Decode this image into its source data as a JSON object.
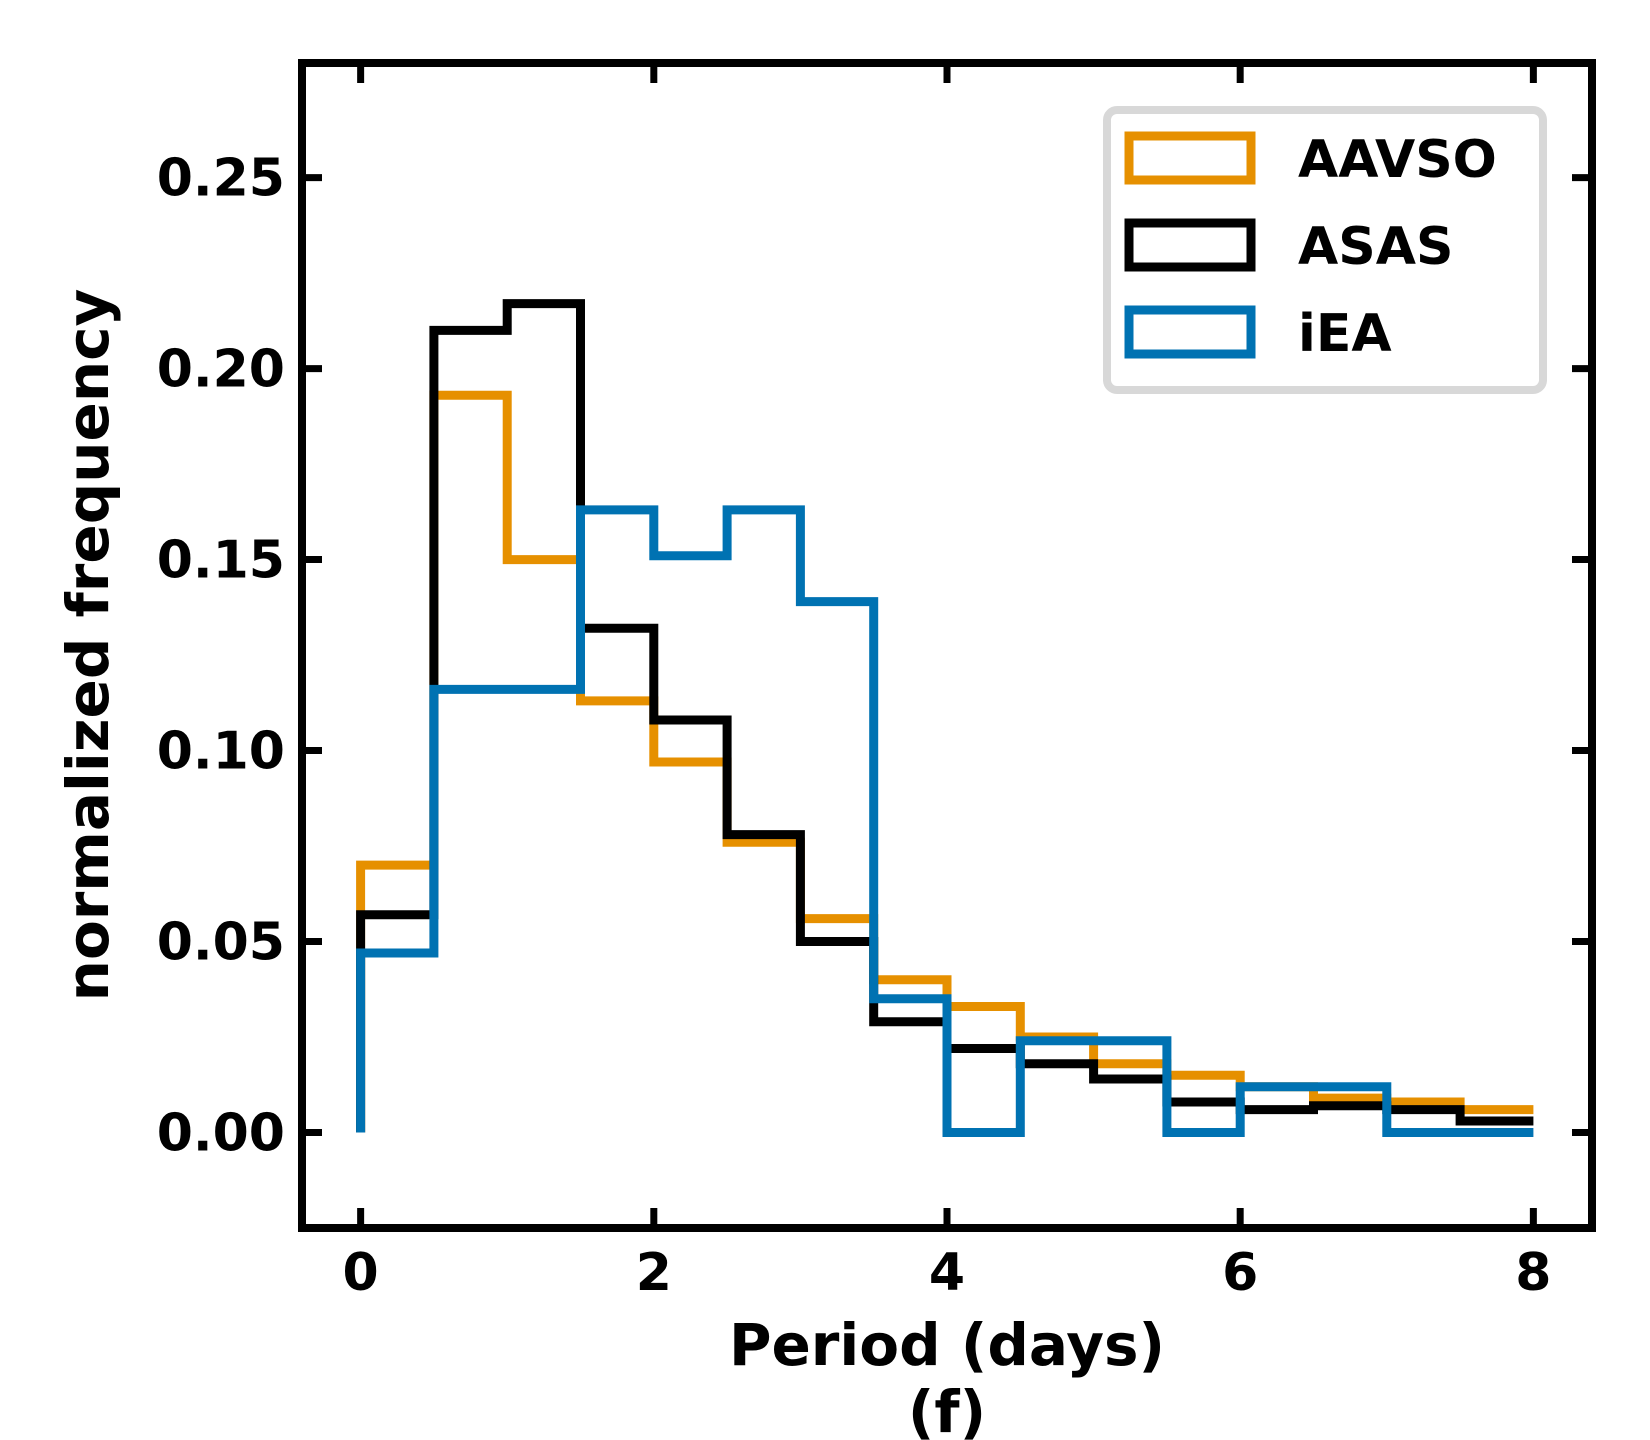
{
  "chart_data": {
    "type": "histogram-step",
    "xlabel": "Period (days)",
    "ylabel": "normalized frequency",
    "caption": "(f)",
    "xlim": [
      -0.4,
      8.4
    ],
    "ylim": [
      -0.025,
      0.28
    ],
    "xticks": [
      0,
      2,
      4,
      6,
      8
    ],
    "xtick_labels": [
      "0",
      "2",
      "4",
      "6",
      "8"
    ],
    "yticks": [
      0.0,
      0.05,
      0.1,
      0.15,
      0.2,
      0.25
    ],
    "ytick_labels": [
      "0.00",
      "0.05",
      "0.10",
      "0.15",
      "0.20",
      "0.25"
    ],
    "legend_position": "top-right",
    "bin_edges": [
      0,
      0.5,
      1,
      1.5,
      2,
      2.5,
      3,
      3.5,
      4,
      4.5,
      5,
      5.5,
      6,
      6.5,
      7,
      7.5,
      8
    ],
    "series": [
      {
        "name": "AAVSO",
        "color": "#e69000",
        "values": [
          0.07,
          0.193,
          0.15,
          0.113,
          0.097,
          0.076,
          0.056,
          0.04,
          0.033,
          0.025,
          0.018,
          0.015,
          0.012,
          0.009,
          0.008,
          0.006
        ]
      },
      {
        "name": "ASAS",
        "color": "#000000",
        "values": [
          0.057,
          0.21,
          0.217,
          0.132,
          0.108,
          0.078,
          0.05,
          0.029,
          0.022,
          0.018,
          0.014,
          0.008,
          0.006,
          0.007,
          0.006,
          0.003
        ]
      },
      {
        "name": "iEA",
        "color": "#0072b2",
        "values": [
          0.047,
          0.116,
          0.116,
          0.163,
          0.151,
          0.163,
          0.139,
          0.035,
          0.0,
          0.024,
          0.024,
          0.0,
          0.012,
          0.012,
          0.0,
          0.0
        ]
      }
    ]
  }
}
